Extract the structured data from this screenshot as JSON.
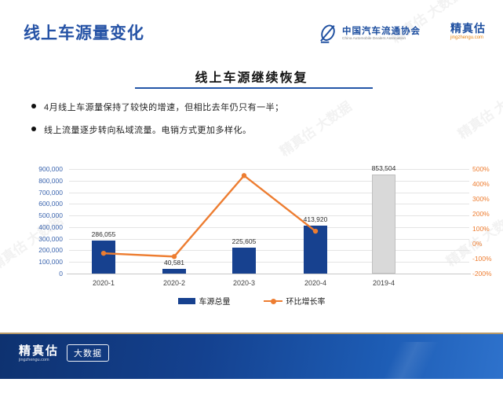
{
  "header": {
    "title": "线上车源量变化",
    "association": {
      "name": "中国汽车流通协会",
      "subtitle": "China Automobile Dealers Association"
    },
    "brand": {
      "name": "精真估",
      "domain": "jingzhengu.com"
    }
  },
  "section": {
    "title": "线上车源继续恢复"
  },
  "bullets": [
    "4月线上车源量保持了较快的增速，但相比去年仍只有一半；",
    "线上流量逐步转向私域流量。电销方式更加多样化。"
  ],
  "chart_data": {
    "type": "bar",
    "subtype": "bar-line-combo",
    "categories": [
      "2020-1",
      "2020-2",
      "2020-3",
      "2020-4",
      "2019-4"
    ],
    "series": [
      {
        "name": "车源总量",
        "type": "bar",
        "values": [
          286055,
          40581,
          225605,
          413920,
          853504
        ],
        "labels": [
          "286,055",
          "40,581",
          "225,605",
          "413,920",
          "853,504"
        ]
      },
      {
        "name": "环比增长率",
        "type": "line",
        "unit": "%",
        "values": [
          -64,
          -86,
          456,
          84,
          null
        ]
      }
    ],
    "left_axis": {
      "min": 0,
      "max": 900000,
      "step": 100000,
      "tick_labels_top_down": [
        "900,000",
        "800,000",
        "700,000",
        "600,000",
        "500,000",
        "400,000",
        "300,000",
        "200,000",
        "100,000",
        "0"
      ]
    },
    "right_axis": {
      "min": -200,
      "max": 500,
      "step": 100,
      "tick_labels_top_down": [
        "500%",
        "400%",
        "300%",
        "200%",
        "100%",
        "0%",
        "-100%",
        "-200%"
      ]
    },
    "grid": true,
    "legend_position": "bottom",
    "colors": {
      "bar": "#17418f",
      "bar_2019": "#d9d9d9",
      "bar_2019_border": "#bfbfbf",
      "line": "#ed7d31"
    }
  },
  "footer": {
    "brand": "精真估",
    "domain": "jingzhengu.com",
    "badge": "大数据"
  },
  "watermark_text": "精真估 大数据"
}
